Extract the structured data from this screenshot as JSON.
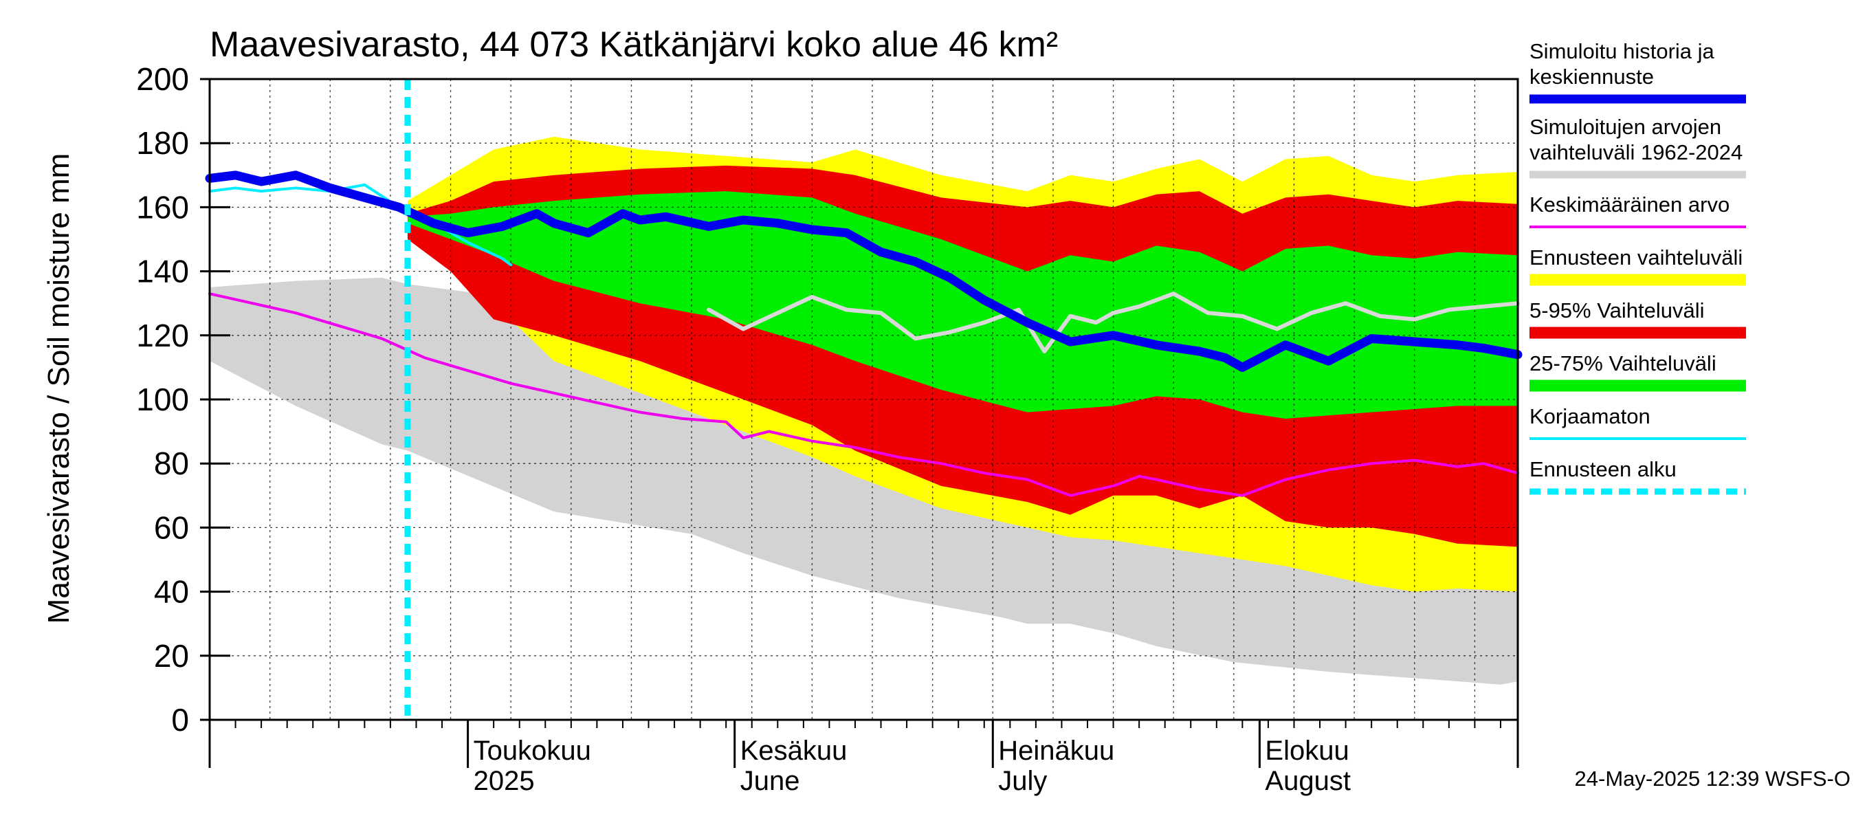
{
  "chart_data": {
    "type": "area",
    "title": "Maavesivarasto, 44 073 Kätkänjärvi koko alue 46 km²",
    "ylabel": "Maavesivarasto / Soil moisture   mm",
    "ylim": [
      0,
      200
    ],
    "yticks": [
      "0",
      "20",
      "40",
      "60",
      "80",
      "100",
      "120",
      "140",
      "160",
      "180",
      "200"
    ],
    "xlim": [
      "2025-04-01",
      "2025-08-31"
    ],
    "forecast_start": "2025-04-24",
    "month_labels": [
      {
        "date": "2025-05-01",
        "fi": "Toukokuu",
        "en": "2025"
      },
      {
        "date": "2025-06-01",
        "fi": "Kesäkuu",
        "en": "June"
      },
      {
        "date": "2025-07-01",
        "fi": "Heinäkuu",
        "en": "July"
      },
      {
        "date": "2025-08-01",
        "fi": "Elokuu",
        "en": "August"
      }
    ],
    "grid": true,
    "legend_position": "right",
    "colors": {
      "sim": "#0000ee",
      "hist_range": "#d3d3d3",
      "mean": "#ee00ee",
      "ens_range": "#ffff00",
      "p5_95": "#ee0000",
      "p25_75": "#00ee00",
      "uncorrected": "#00eeff",
      "forecast_start": "#00eeff",
      "median_trace": "#d9d9d9"
    },
    "legend": [
      {
        "key": "sim",
        "label": "Simuloitu historia ja keskiennuste"
      },
      {
        "key": "hist_range",
        "label": "Simuloitujen arvojen vaihteluväli 1962-2024"
      },
      {
        "key": "mean",
        "label": "Keskimääräinen arvo"
      },
      {
        "key": "ens_range",
        "label": "Ennusteen vaihteluväli"
      },
      {
        "key": "p5_95",
        "label": "5-95% Vaihteluväli"
      },
      {
        "key": "p25_75",
        "label": "25-75% Vaihteluväli"
      },
      {
        "key": "uncorrected",
        "label": "Korjaamaton"
      },
      {
        "key": "forecast_start",
        "label": "Ennusteen alku"
      }
    ],
    "series": {
      "hist_range": {
        "x": [
          0,
          10,
          20,
          23,
          40,
          56,
          62,
          70,
          80,
          92,
          95,
          100,
          105,
          110,
          119,
          130,
          140,
          150,
          152
        ],
        "upper": [
          135,
          137,
          138,
          136,
          130,
          128,
          127,
          126,
          124,
          129,
          121,
          125,
          129,
          123,
          119,
          112,
          118,
          115,
          116
        ],
        "lower": [
          112,
          98,
          86,
          84,
          65,
          58,
          52,
          45,
          38,
          32,
          30,
          30,
          27,
          23,
          18,
          15,
          13,
          11,
          12
        ]
      },
      "ens_range": {
        "x": [
          23,
          28,
          33,
          40,
          50,
          60,
          70,
          75,
          85,
          95,
          100,
          105,
          110,
          115,
          120,
          125,
          130,
          135,
          140,
          145,
          152
        ],
        "upper": [
          162,
          170,
          178,
          182,
          178,
          176,
          174,
          178,
          170,
          165,
          170,
          168,
          172,
          175,
          168,
          175,
          176,
          170,
          168,
          170,
          171
        ],
        "lower": [
          156,
          145,
          130,
          112,
          102,
          92,
          82,
          76,
          66,
          60,
          57,
          56,
          54,
          52,
          50,
          48,
          45,
          42,
          40,
          41,
          40
        ]
      },
      "p5_95": {
        "x": [
          23,
          28,
          33,
          40,
          50,
          60,
          70,
          75,
          85,
          95,
          100,
          105,
          110,
          115,
          120,
          125,
          130,
          135,
          140,
          145,
          152
        ],
        "upper": [
          158,
          162,
          168,
          170,
          172,
          173,
          172,
          170,
          163,
          160,
          162,
          160,
          164,
          165,
          158,
          163,
          164,
          162,
          160,
          162,
          161
        ],
        "lower": [
          150,
          140,
          125,
          120,
          112,
          102,
          92,
          84,
          73,
          68,
          64,
          70,
          70,
          66,
          70,
          62,
          60,
          60,
          58,
          55,
          54
        ]
      },
      "p25_75": {
        "x": [
          23,
          28,
          33,
          40,
          50,
          60,
          70,
          75,
          85,
          95,
          100,
          105,
          110,
          115,
          120,
          125,
          130,
          135,
          140,
          145,
          152
        ],
        "upper": [
          157,
          158,
          160,
          162,
          164,
          165,
          163,
          158,
          150,
          140,
          145,
          143,
          148,
          146,
          140,
          147,
          148,
          145,
          144,
          146,
          145
        ],
        "lower": [
          155,
          150,
          145,
          137,
          130,
          125,
          117,
          112,
          103,
          96,
          97,
          98,
          101,
          100,
          96,
          94,
          95,
          96,
          97,
          98,
          98
        ]
      },
      "median_trace": {
        "x": [
          58,
          62,
          66,
          70,
          74,
          78,
          82,
          86,
          90,
          94,
          97,
          100,
          103,
          105,
          108,
          112,
          116,
          120,
          124,
          128,
          132,
          136,
          140,
          144,
          148,
          152
        ],
        "values": [
          128,
          122,
          127,
          132,
          128,
          127,
          119,
          121,
          124,
          128,
          115,
          126,
          124,
          127,
          129,
          133,
          127,
          126,
          122,
          127,
          130,
          126,
          125,
          128,
          129,
          130
        ]
      },
      "mean": {
        "x": [
          0,
          5,
          10,
          15,
          20,
          25,
          30,
          35,
          40,
          45,
          50,
          55,
          60,
          62,
          65,
          70,
          75,
          80,
          85,
          90,
          95,
          100,
          105,
          108,
          110,
          115,
          120,
          125,
          130,
          135,
          140,
          145,
          148,
          152
        ],
        "values": [
          133,
          130,
          127,
          123,
          119,
          113,
          109,
          105,
          102,
          99,
          96,
          94,
          93,
          88,
          90,
          87,
          85,
          82,
          80,
          77,
          75,
          70,
          73,
          76,
          75,
          72,
          70,
          75,
          78,
          80,
          81,
          79,
          80,
          77
        ]
      },
      "uncorrected": {
        "x": [
          0,
          3,
          6,
          10,
          14,
          18,
          22,
          26,
          30,
          34,
          35
        ],
        "values": [
          165,
          166,
          165,
          166,
          165,
          167,
          160,
          155,
          149,
          144,
          142
        ]
      },
      "sim": {
        "x": [
          0,
          3,
          6,
          10,
          14,
          18,
          22,
          26,
          30,
          34,
          38,
          40,
          44,
          48,
          50,
          53,
          58,
          62,
          66,
          70,
          74,
          78,
          82,
          86,
          90,
          95,
          100,
          105,
          110,
          115,
          118,
          120,
          125,
          130,
          135,
          140,
          145,
          148,
          152
        ],
        "values": [
          169,
          170,
          168,
          170,
          166,
          163,
          160,
          155,
          152,
          154,
          158,
          155,
          152,
          158,
          156,
          157,
          154,
          156,
          155,
          153,
          152,
          146,
          143,
          138,
          131,
          124,
          118,
          120,
          117,
          115,
          113,
          110,
          117,
          112,
          119,
          118,
          117,
          116,
          114
        ]
      }
    }
  },
  "timestamp": "24-May-2025 12:39 WSFS-O"
}
